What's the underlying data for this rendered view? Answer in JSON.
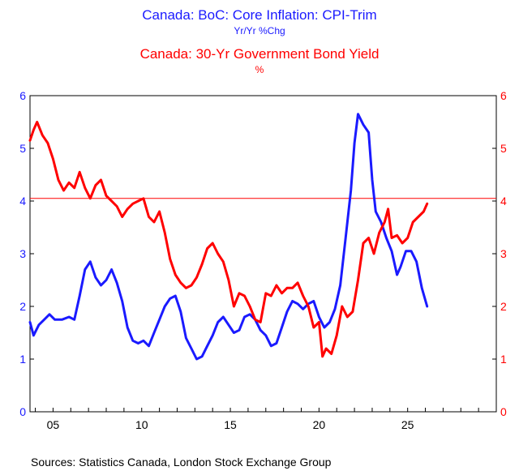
{
  "titles": {
    "series1_title": "Canada: BoC: Core Inflation: CPI-Trim",
    "series1_units": "Yr/Yr %Chg",
    "series2_title": "Canada: 30-Yr Government Bond Yield",
    "series2_units": "%"
  },
  "source": "Sources:  Statistics Canada, London Stock Exchange Group",
  "colors": {
    "series1": "#1a1aff",
    "series2": "#ff0000",
    "reference_line": "#ff0000",
    "axis": "#000000"
  },
  "chart_data": {
    "type": "line",
    "x_axis": {
      "min": 2003.7,
      "max": 2030.0,
      "ticks": [
        2005,
        2010,
        2015,
        2020,
        2025
      ],
      "tick_labels": [
        "05",
        "10",
        "15",
        "20",
        "25"
      ]
    },
    "y_left": {
      "min": 0,
      "max": 6,
      "ticks": [
        0,
        1,
        2,
        3,
        4,
        5,
        6
      ],
      "color": "#1a1aff"
    },
    "y_right": {
      "min": 0,
      "max": 6,
      "ticks": [
        0,
        1,
        2,
        3,
        4,
        5,
        6
      ],
      "color": "#ff0000"
    },
    "reference_line": {
      "axis": "right",
      "value": 4.05
    },
    "grid": false,
    "series": [
      {
        "axis": "left",
        "color": "#1a1aff",
        "points": [
          [
            2003.7,
            1.7
          ],
          [
            2003.9,
            1.45
          ],
          [
            2004.2,
            1.65
          ],
          [
            2004.5,
            1.75
          ],
          [
            2004.8,
            1.85
          ],
          [
            2005.1,
            1.75
          ],
          [
            2005.5,
            1.75
          ],
          [
            2005.9,
            1.8
          ],
          [
            2006.2,
            1.75
          ],
          [
            2006.5,
            2.2
          ],
          [
            2006.8,
            2.7
          ],
          [
            2007.1,
            2.85
          ],
          [
            2007.4,
            2.55
          ],
          [
            2007.7,
            2.4
          ],
          [
            2008.0,
            2.5
          ],
          [
            2008.3,
            2.7
          ],
          [
            2008.6,
            2.45
          ],
          [
            2008.9,
            2.1
          ],
          [
            2009.2,
            1.6
          ],
          [
            2009.5,
            1.35
          ],
          [
            2009.8,
            1.3
          ],
          [
            2010.1,
            1.35
          ],
          [
            2010.4,
            1.25
          ],
          [
            2010.7,
            1.5
          ],
          [
            2011.0,
            1.75
          ],
          [
            2011.3,
            2.0
          ],
          [
            2011.6,
            2.15
          ],
          [
            2011.9,
            2.2
          ],
          [
            2012.2,
            1.9
          ],
          [
            2012.5,
            1.4
          ],
          [
            2012.8,
            1.2
          ],
          [
            2013.1,
            1.0
          ],
          [
            2013.4,
            1.05
          ],
          [
            2013.7,
            1.25
          ],
          [
            2014.0,
            1.45
          ],
          [
            2014.3,
            1.7
          ],
          [
            2014.6,
            1.8
          ],
          [
            2014.9,
            1.65
          ],
          [
            2015.2,
            1.5
          ],
          [
            2015.5,
            1.55
          ],
          [
            2015.8,
            1.8
          ],
          [
            2016.1,
            1.85
          ],
          [
            2016.4,
            1.75
          ],
          [
            2016.7,
            1.55
          ],
          [
            2017.0,
            1.45
          ],
          [
            2017.3,
            1.25
          ],
          [
            2017.6,
            1.3
          ],
          [
            2017.9,
            1.6
          ],
          [
            2018.2,
            1.9
          ],
          [
            2018.5,
            2.1
          ],
          [
            2018.8,
            2.05
          ],
          [
            2019.1,
            1.95
          ],
          [
            2019.4,
            2.05
          ],
          [
            2019.7,
            2.1
          ],
          [
            2020.0,
            1.8
          ],
          [
            2020.3,
            1.6
          ],
          [
            2020.6,
            1.7
          ],
          [
            2020.9,
            1.95
          ],
          [
            2021.2,
            2.4
          ],
          [
            2021.5,
            3.3
          ],
          [
            2021.8,
            4.2
          ],
          [
            2022.0,
            5.1
          ],
          [
            2022.2,
            5.65
          ],
          [
            2022.5,
            5.45
          ],
          [
            2022.8,
            5.3
          ],
          [
            2023.0,
            4.4
          ],
          [
            2023.2,
            3.8
          ],
          [
            2023.5,
            3.6
          ],
          [
            2023.8,
            3.3
          ],
          [
            2024.1,
            3.05
          ],
          [
            2024.4,
            2.6
          ],
          [
            2024.6,
            2.75
          ],
          [
            2024.9,
            3.05
          ],
          [
            2025.2,
            3.05
          ],
          [
            2025.5,
            2.85
          ],
          [
            2025.8,
            2.35
          ],
          [
            2026.1,
            2.0
          ]
        ]
      },
      {
        "axis": "right",
        "color": "#ff0000",
        "points": [
          [
            2003.7,
            5.15
          ],
          [
            2003.9,
            5.35
          ],
          [
            2004.1,
            5.5
          ],
          [
            2004.4,
            5.25
          ],
          [
            2004.7,
            5.1
          ],
          [
            2005.0,
            4.8
          ],
          [
            2005.3,
            4.4
          ],
          [
            2005.6,
            4.2
          ],
          [
            2005.9,
            4.35
          ],
          [
            2006.2,
            4.25
          ],
          [
            2006.5,
            4.55
          ],
          [
            2006.8,
            4.25
          ],
          [
            2007.1,
            4.05
          ],
          [
            2007.4,
            4.3
          ],
          [
            2007.7,
            4.4
          ],
          [
            2008.0,
            4.1
          ],
          [
            2008.3,
            4.0
          ],
          [
            2008.6,
            3.9
          ],
          [
            2008.9,
            3.7
          ],
          [
            2009.2,
            3.85
          ],
          [
            2009.5,
            3.95
          ],
          [
            2009.8,
            4.0
          ],
          [
            2010.1,
            4.05
          ],
          [
            2010.4,
            3.7
          ],
          [
            2010.7,
            3.6
          ],
          [
            2011.0,
            3.8
          ],
          [
            2011.3,
            3.4
          ],
          [
            2011.6,
            2.9
          ],
          [
            2011.9,
            2.6
          ],
          [
            2012.2,
            2.45
          ],
          [
            2012.5,
            2.35
          ],
          [
            2012.8,
            2.4
          ],
          [
            2013.1,
            2.55
          ],
          [
            2013.4,
            2.8
          ],
          [
            2013.7,
            3.1
          ],
          [
            2014.0,
            3.2
          ],
          [
            2014.3,
            3.0
          ],
          [
            2014.6,
            2.85
          ],
          [
            2014.9,
            2.5
          ],
          [
            2015.2,
            2.0
          ],
          [
            2015.5,
            2.25
          ],
          [
            2015.8,
            2.2
          ],
          [
            2016.1,
            2.0
          ],
          [
            2016.4,
            1.75
          ],
          [
            2016.7,
            1.7
          ],
          [
            2017.0,
            2.25
          ],
          [
            2017.3,
            2.2
          ],
          [
            2017.6,
            2.4
          ],
          [
            2017.9,
            2.25
          ],
          [
            2018.2,
            2.35
          ],
          [
            2018.5,
            2.35
          ],
          [
            2018.8,
            2.45
          ],
          [
            2019.1,
            2.2
          ],
          [
            2019.4,
            2.0
          ],
          [
            2019.7,
            1.6
          ],
          [
            2020.0,
            1.7
          ],
          [
            2020.2,
            1.05
          ],
          [
            2020.4,
            1.2
          ],
          [
            2020.7,
            1.1
          ],
          [
            2021.0,
            1.45
          ],
          [
            2021.3,
            2.0
          ],
          [
            2021.6,
            1.8
          ],
          [
            2021.9,
            1.9
          ],
          [
            2022.2,
            2.5
          ],
          [
            2022.5,
            3.2
          ],
          [
            2022.8,
            3.3
          ],
          [
            2023.1,
            3.0
          ],
          [
            2023.4,
            3.4
          ],
          [
            2023.7,
            3.6
          ],
          [
            2023.9,
            3.85
          ],
          [
            2024.1,
            3.3
          ],
          [
            2024.4,
            3.35
          ],
          [
            2024.7,
            3.2
          ],
          [
            2025.0,
            3.3
          ],
          [
            2025.3,
            3.6
          ],
          [
            2025.6,
            3.7
          ],
          [
            2025.9,
            3.8
          ],
          [
            2026.1,
            3.95
          ]
        ]
      }
    ]
  }
}
